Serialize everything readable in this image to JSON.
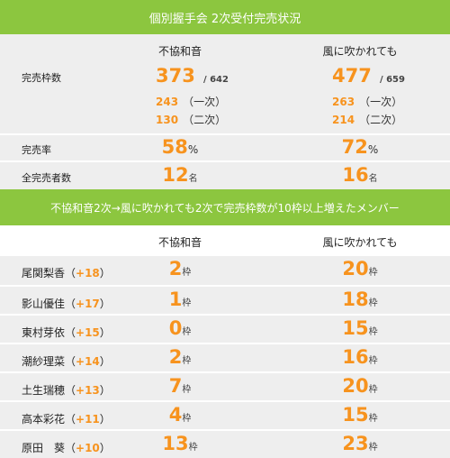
{
  "title": "個別握手会 2次受付完売状況",
  "columns": {
    "col1": "不協和音",
    "col2": "風に吹かれても"
  },
  "stats": {
    "slots": {
      "label": "完売枠数",
      "col1": {
        "total": "373",
        "of": "/ 642",
        "first": "243",
        "first_label": "（一次）",
        "second": "130",
        "second_label": "（二次）"
      },
      "col2": {
        "total": "477",
        "of": "/ 659",
        "first": "263",
        "first_label": "（一次）",
        "second": "214",
        "second_label": "（二次）"
      }
    },
    "rate": {
      "label": "完売率",
      "col1": "58",
      "col2": "72",
      "unit": "%"
    },
    "members": {
      "label": "全完売者数",
      "col1": "12",
      "col2": "16",
      "unit": "名"
    }
  },
  "section2_title": "不協和音2次→風に吹かれても2次で完売枠数が10枠以上増えたメンバー",
  "unit_waku": "枠",
  "paren_open": "（",
  "paren_close": "）",
  "members": [
    {
      "name": "尾関梨香",
      "diff": "+18",
      "col1": "2",
      "col2": "20"
    },
    {
      "name": "影山優佳",
      "diff": "+17",
      "col1": "1",
      "col2": "18"
    },
    {
      "name": "東村芽依",
      "diff": "+15",
      "col1": "0",
      "col2": "15"
    },
    {
      "name": "潮紗理菜",
      "diff": "+14",
      "col1": "2",
      "col2": "16"
    },
    {
      "name": "土生瑞穂",
      "diff": "+13",
      "col1": "7",
      "col2": "20"
    },
    {
      "name": "高本彩花",
      "diff": "+11",
      "col1": "4",
      "col2": "15"
    },
    {
      "name": "原田　葵",
      "diff": "+10",
      "col1": "13",
      "col2": "23"
    }
  ],
  "colors": {
    "header_green": "#8cc63f",
    "accent_orange": "#f7931e",
    "row_gray": "#eeeeee"
  }
}
